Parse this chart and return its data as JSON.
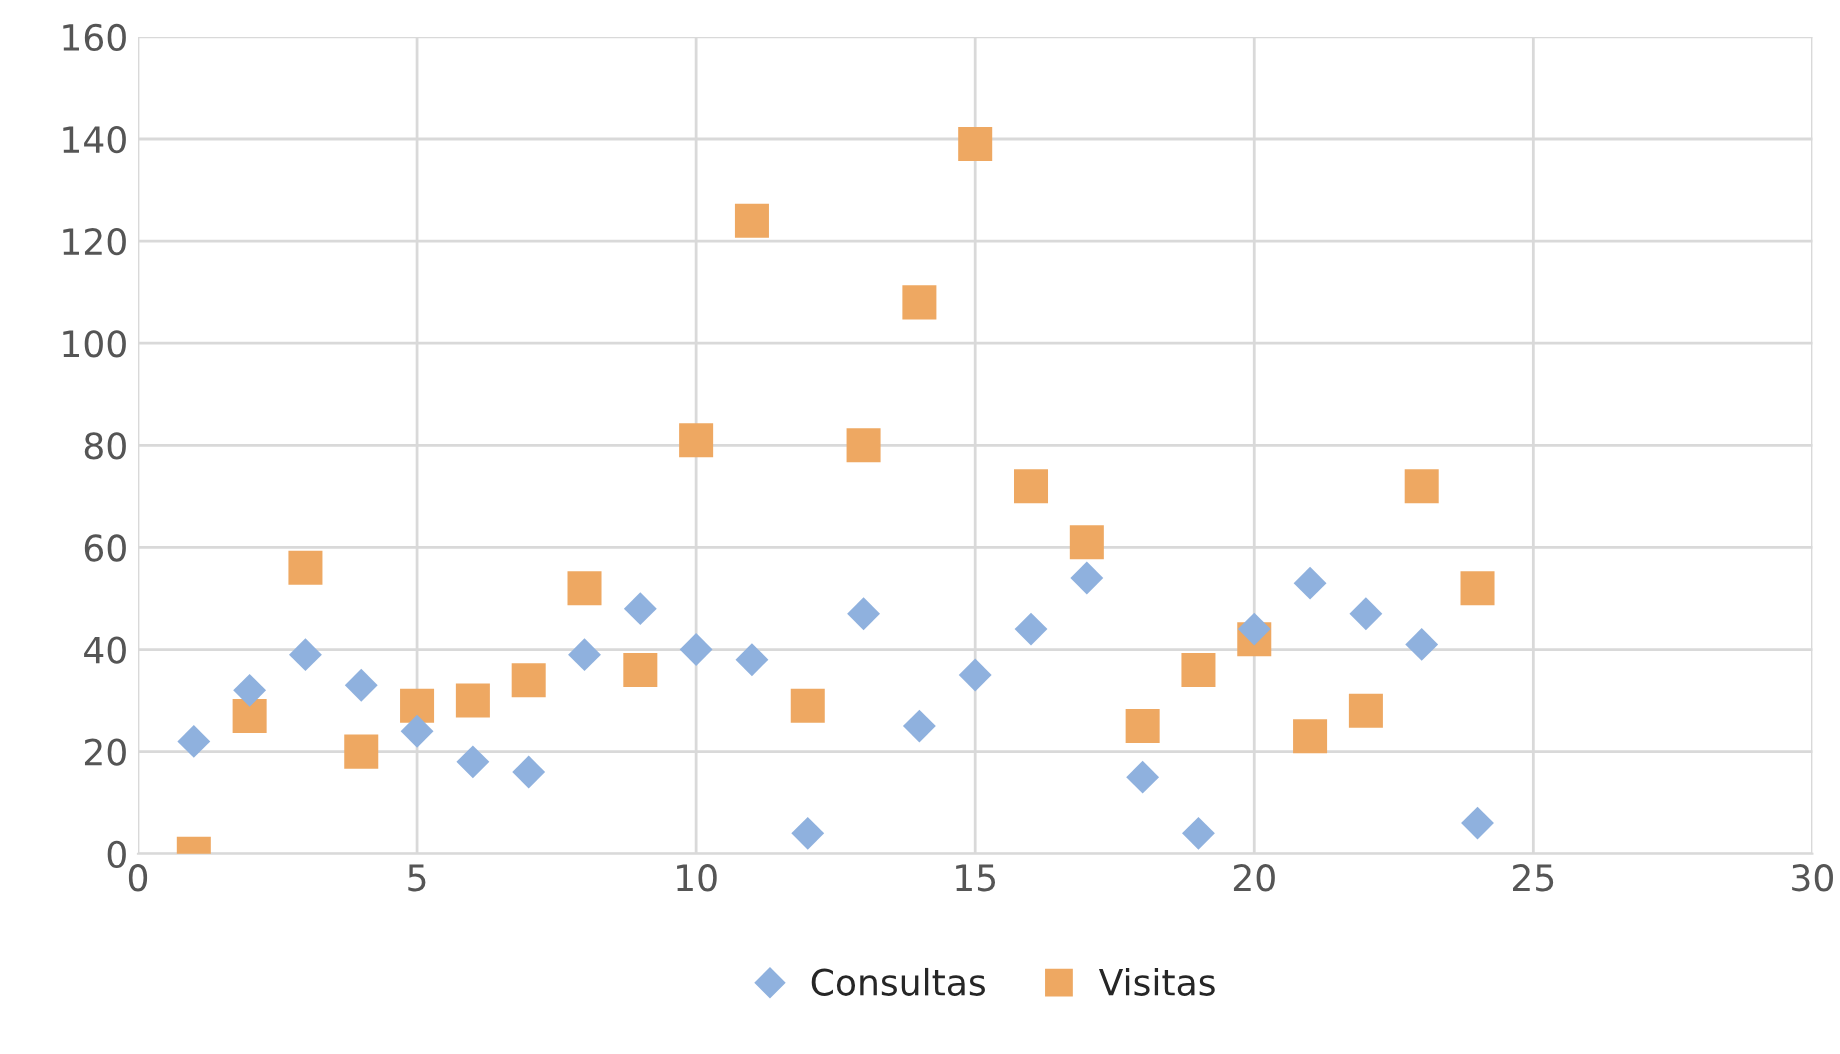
{
  "chart_data": {
    "type": "scatter",
    "x": [
      1,
      2,
      3,
      4,
      5,
      6,
      7,
      8,
      9,
      10,
      11,
      12,
      13,
      14,
      15,
      16,
      17,
      18,
      19,
      20,
      21,
      22,
      23,
      24
    ],
    "series": [
      {
        "name": "Consultas",
        "color": "#8fb1de",
        "marker": "diamond",
        "values": [
          22,
          32,
          39,
          33,
          24,
          18,
          16,
          39,
          48,
          40,
          38,
          4,
          47,
          25,
          35,
          44,
          54,
          15,
          4,
          44,
          53,
          47,
          41,
          6
        ]
      },
      {
        "name": "Visitas",
        "color": "#eea862",
        "marker": "square",
        "values": [
          0,
          27,
          56,
          20,
          29,
          30,
          34,
          52,
          36,
          81,
          124,
          29,
          80,
          108,
          139,
          72,
          61,
          25,
          36,
          42,
          23,
          28,
          72,
          52
        ]
      }
    ],
    "xlim": [
      0,
      30
    ],
    "xticks": [
      0,
      5,
      10,
      15,
      20,
      25,
      30
    ],
    "ylim": [
      0,
      160
    ],
    "yticks": [
      0,
      20,
      40,
      60,
      80,
      100,
      120,
      140,
      160
    ],
    "grid": true,
    "legend": "bottom"
  }
}
